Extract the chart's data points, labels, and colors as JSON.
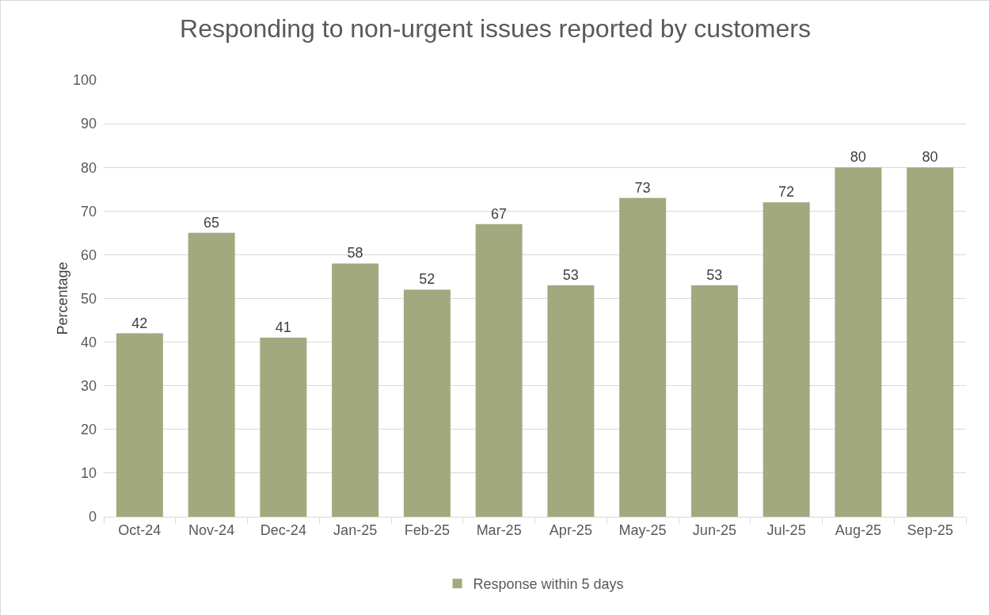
{
  "chart_data": {
    "type": "bar",
    "title": "Responding to non-urgent issues reported by customers",
    "ylabel": "Percentage",
    "categories": [
      "Oct-24",
      "Nov-24",
      "Dec-24",
      "Jan-25",
      "Feb-25",
      "Mar-25",
      "Apr-25",
      "May-25",
      "Jun-25",
      "Jul-25",
      "Aug-25",
      "Sep-25"
    ],
    "series": [
      {
        "name": "Response within 5 days",
        "color": "#a3a97e",
        "values": [
          42,
          65,
          41,
          58,
          52,
          67,
          53,
          73,
          53,
          72,
          80,
          80
        ]
      }
    ],
    "ylim": [
      0,
      100
    ],
    "yticks": [
      0,
      10,
      20,
      30,
      40,
      50,
      60,
      70,
      80,
      90,
      100
    ],
    "grid": "y",
    "legend": "bottom",
    "data_labels": true
  }
}
